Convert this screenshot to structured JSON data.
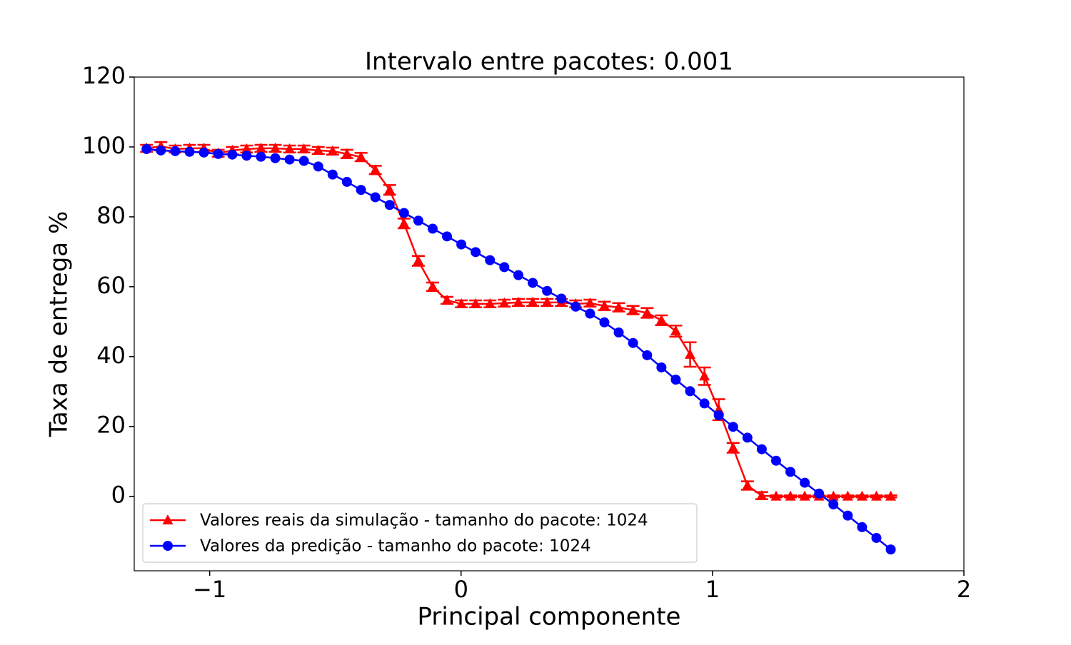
{
  "chart_data": {
    "type": "line",
    "title": "Intervalo entre pacotes: 0.001",
    "x_label": "Principal componente",
    "y_label": "Taxa de entrega %",
    "x": [
      -1.251,
      -1.194,
      -1.137,
      -1.08,
      -1.023,
      -0.966,
      -0.91,
      -0.853,
      -0.796,
      -0.739,
      -0.682,
      -0.625,
      -0.568,
      -0.511,
      -0.454,
      -0.398,
      -0.341,
      -0.284,
      -0.227,
      -0.17,
      -0.113,
      -0.056,
      0.001,
      0.058,
      0.115,
      0.172,
      0.228,
      0.285,
      0.342,
      0.399,
      0.456,
      0.513,
      0.57,
      0.627,
      0.684,
      0.74,
      0.797,
      0.854,
      0.911,
      0.968,
      1.025,
      1.082,
      1.139,
      1.196,
      1.253,
      1.31,
      1.367,
      1.424,
      1.481,
      1.538,
      1.595,
      1.652,
      1.709
    ],
    "series": [
      {
        "name": "Valores reais da simulação - tamanho do pacote: 1024",
        "color": "#ff0000",
        "marker": "triangle",
        "values": [
          99.6,
          100.2,
          99.4,
          99.6,
          99.6,
          98.2,
          99.0,
          99.4,
          99.6,
          99.6,
          99.4,
          99.4,
          99.0,
          98.8,
          98.0,
          97.1,
          93.4,
          87.7,
          78.1,
          67.4,
          60.0,
          56.1,
          55.1,
          55.1,
          55.1,
          55.3,
          55.5,
          55.5,
          55.5,
          55.5,
          55.1,
          55.3,
          54.5,
          54.1,
          53.3,
          52.5,
          50.4,
          47.3,
          40.6,
          34.4,
          24.8,
          13.9,
          3.1,
          0.2,
          0,
          0,
          0,
          0,
          0,
          0,
          0,
          0,
          0
        ],
        "errors": [
          1.0,
          1.2,
          1.0,
          1.0,
          1.0,
          1.0,
          1.0,
          1.0,
          1.0,
          1.0,
          1.0,
          1.0,
          1.0,
          1.0,
          1.2,
          1.2,
          1.2,
          1.4,
          1.4,
          1.4,
          1.2,
          1.0,
          1.0,
          1.0,
          1.0,
          1.0,
          1.0,
          1.0,
          1.0,
          1.0,
          1.0,
          1.0,
          1.2,
          1.2,
          1.2,
          1.4,
          1.4,
          1.6,
          3.5,
          2.5,
          3.0,
          1.4,
          1.2,
          1.0,
          0.3,
          0.3,
          0.3,
          0.3,
          0.3,
          0.3,
          0.3,
          0.3,
          0.3
        ]
      },
      {
        "name": "Valores da predição - tamanho do pacote: 1024",
        "color": "#0000ff",
        "marker": "circle",
        "values": [
          99.4,
          99.0,
          98.8,
          98.6,
          98.4,
          98.0,
          97.8,
          97.5,
          97.2,
          96.8,
          96.4,
          96.0,
          94.4,
          92.1,
          90.0,
          87.7,
          85.6,
          83.4,
          81.1,
          78.9,
          76.6,
          74.4,
          72.1,
          69.9,
          67.6,
          65.6,
          63.3,
          61.1,
          58.8,
          56.6,
          54.3,
          52.3,
          49.8,
          46.9,
          43.9,
          40.4,
          36.9,
          33.4,
          30.1,
          26.6,
          23.2,
          19.9,
          16.8,
          13.5,
          10.2,
          7.0,
          3.9,
          0.8,
          -2.3,
          -5.5,
          -8.8,
          -11.9,
          -15.2
        ]
      }
    ],
    "xlim": [
      -1.3,
      2
    ],
    "ylim": [
      -21.3,
      120
    ],
    "xticks": [
      {
        "value": -1,
        "label": "−1"
      },
      0,
      1,
      2
    ],
    "yticks": [
      0,
      20,
      40,
      60,
      80,
      100,
      120
    ],
    "legend": "lower left"
  }
}
